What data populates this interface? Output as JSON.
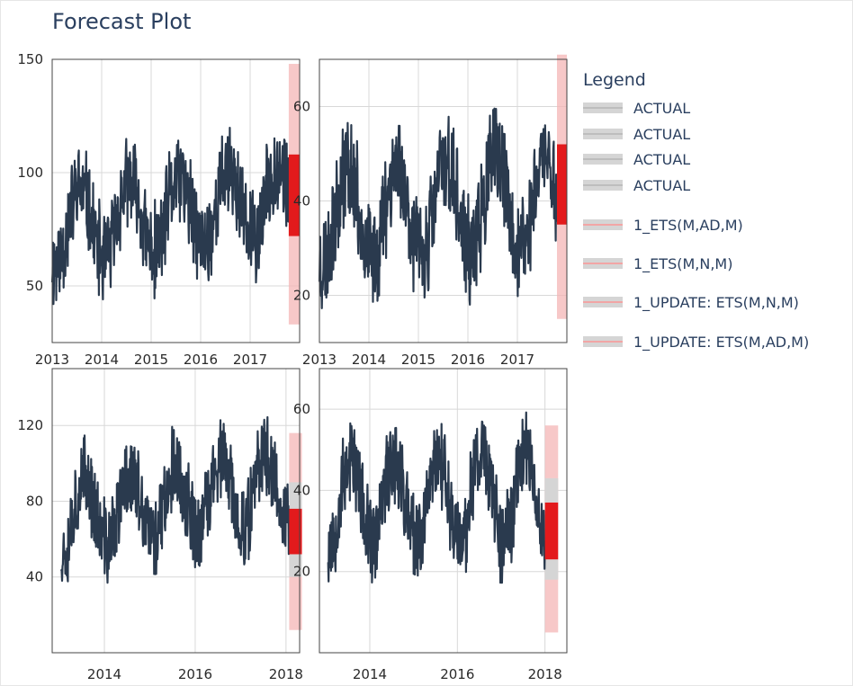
{
  "title": "Forecast Plot",
  "legend": {
    "title": "Legend",
    "items": [
      {
        "label": "ACTUAL",
        "line_color": "#bdbdbd"
      },
      {
        "label": "ACTUAL",
        "line_color": "#bdbdbd"
      },
      {
        "label": "ACTUAL",
        "line_color": "#bdbdbd"
      },
      {
        "label": "ACTUAL",
        "line_color": "#bdbdbd"
      },
      {
        "label": "1_ETS(M,AD,M)",
        "line_color": "#f2a5a5"
      },
      {
        "label": "1_ETS(M,N,M)",
        "line_color": "#f2a5a5"
      },
      {
        "label": "1_UPDATE: ETS(M,N,M)",
        "line_color": "#f2a5a5"
      },
      {
        "label": "1_UPDATE: ETS(M,AD,M)",
        "line_color": "#f2a5a5"
      }
    ]
  },
  "colors": {
    "actual": "#2a3a4e",
    "forecast": "#e31a1c",
    "interval": "#f4b6b6",
    "band": "#d5d5d5",
    "grid": "#d8d8d8",
    "axis_text": "#2a3f5f"
  },
  "chart_data": [
    {
      "type": "line",
      "panel": "top-left",
      "x_range": [
        2013.0,
        2018.0
      ],
      "x_ticks": [
        2013,
        2014,
        2015,
        2016,
        2017
      ],
      "x_tick_labels": [
        "2013",
        "2014",
        "2015",
        "2016",
        "2017"
      ],
      "ylim": [
        25,
        150
      ],
      "y_ticks": [
        50,
        100,
        150
      ],
      "y_tick_labels": [
        "50",
        "100",
        "150"
      ],
      "actual": {
        "start": 2013.0,
        "end": 2017.78,
        "level": 75,
        "trend_per_year": 2.8,
        "season_amp": 16,
        "noise": 24,
        "seed": 11
      },
      "forecast": {
        "start": 2017.78,
        "end": 2018.0,
        "lower": 72,
        "upper": 108
      },
      "interval": {
        "start": 2017.78,
        "end": 2018.0,
        "lower": 33,
        "upper": 148
      }
    },
    {
      "type": "line",
      "panel": "top-right",
      "x_range": [
        2013.0,
        2018.0
      ],
      "x_ticks": [
        2013,
        2014,
        2015,
        2016,
        2017
      ],
      "x_tick_labels": [
        "2013",
        "2014",
        "2015",
        "2016",
        "2017"
      ],
      "ylim": [
        10,
        70
      ],
      "y_ticks": [
        20,
        40,
        60
      ],
      "y_tick_labels": [
        "20",
        "40",
        "60"
      ],
      "actual": {
        "start": 2013.0,
        "end": 2017.8,
        "level": 37,
        "trend_per_year": 0.6,
        "season_amp": 10,
        "noise": 13,
        "seed": 23
      },
      "forecast": {
        "start": 2017.8,
        "end": 2018.0,
        "lower": 35,
        "upper": 52
      },
      "interval": {
        "start": 2017.8,
        "end": 2018.0,
        "lower": 15,
        "upper": 71
      }
    },
    {
      "type": "line",
      "panel": "bottom-left",
      "x_range": [
        2012.85,
        2018.3
      ],
      "x_ticks": [
        2014,
        2016,
        2018
      ],
      "x_tick_labels": [
        "2014",
        "2016",
        "2018"
      ],
      "ylim": [
        0,
        150
      ],
      "y_ticks": [
        40,
        80,
        120
      ],
      "y_tick_labels": [
        "40",
        "80",
        "120"
      ],
      "actual": {
        "start": 2013.05,
        "end": 2018.07,
        "level": 72,
        "trend_per_year": 3.2,
        "season_amp": 18,
        "noise": 26,
        "seed": 37
      },
      "band": {
        "start": 2018.07,
        "end": 2018.35,
        "lower": 40,
        "upper": 90
      },
      "forecast": {
        "start": 2018.07,
        "end": 2018.35,
        "lower": 52,
        "upper": 76
      },
      "interval": {
        "start": 2018.07,
        "end": 2018.35,
        "lower": 12,
        "upper": 116
      }
    },
    {
      "type": "line",
      "panel": "bottom-right",
      "x_range": [
        2012.85,
        2018.5
      ],
      "x_ticks": [
        2014,
        2016,
        2018
      ],
      "x_tick_labels": [
        "2014",
        "2016",
        "2018"
      ],
      "ylim": [
        0,
        70
      ],
      "y_ticks": [
        20,
        40,
        60
      ],
      "y_tick_labels": [
        "20",
        "40",
        "60"
      ],
      "actual": {
        "start": 2013.05,
        "end": 2018.0,
        "level": 37,
        "trend_per_year": 0.5,
        "season_amp": 11,
        "noise": 13,
        "seed": 53
      },
      "band": {
        "start": 2018.0,
        "end": 2018.3,
        "lower": 18,
        "upper": 43
      },
      "forecast": {
        "start": 2018.0,
        "end": 2018.3,
        "lower": 23,
        "upper": 37
      },
      "interval": {
        "start": 2018.0,
        "end": 2018.3,
        "lower": 5,
        "upper": 56
      }
    }
  ]
}
